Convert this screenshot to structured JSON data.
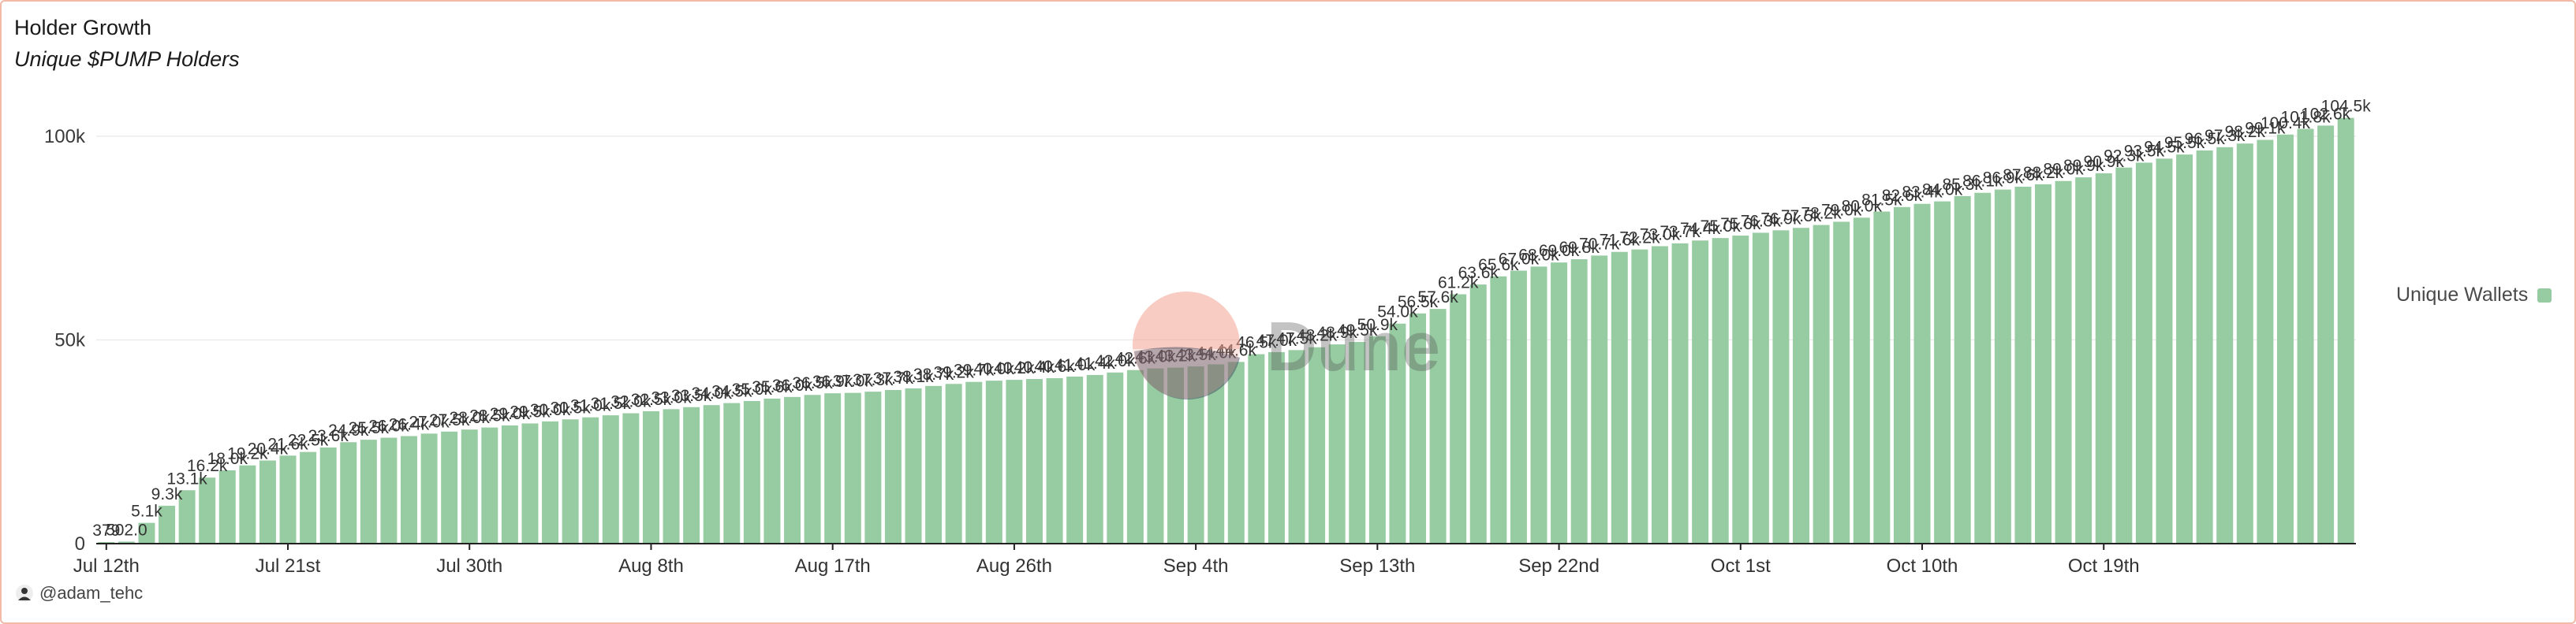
{
  "header": {
    "title": "Holder Growth",
    "subtitle": "Unique $PUMP Holders"
  },
  "footer": {
    "author": "@adam_tehc",
    "author_icon": "user-avatar-icon"
  },
  "watermark": {
    "text": "Dune",
    "icon": "dune-logo-icon"
  },
  "legend": {
    "label": "Unique Wallets",
    "placement": "right",
    "color": "#97cba2"
  },
  "chart_data": {
    "type": "bar",
    "color": "#97cba2",
    "ylim": [
      0,
      105000
    ],
    "yticks": [
      {
        "value": 0,
        "label": "0"
      },
      {
        "value": 50000,
        "label": "50k"
      },
      {
        "value": 100000,
        "label": "100k"
      }
    ],
    "xticks": [
      {
        "index": 0,
        "label": "Jul 12th"
      },
      {
        "index": 9,
        "label": "Jul 21st"
      },
      {
        "index": 18,
        "label": "Jul 30th"
      },
      {
        "index": 27,
        "label": "Aug 8th"
      },
      {
        "index": 36,
        "label": "Aug 17th"
      },
      {
        "index": 45,
        "label": "Aug 26th"
      },
      {
        "index": 54,
        "label": "Sep 4th"
      },
      {
        "index": 63,
        "label": "Sep 13th"
      },
      {
        "index": 72,
        "label": "Sep 22nd"
      },
      {
        "index": 81,
        "label": "Oct 1st"
      },
      {
        "index": 90,
        "label": "Oct 10th"
      },
      {
        "index": 99,
        "label": "Oct 19th"
      }
    ],
    "grid": true,
    "series": [
      {
        "name": "Unique Wallets",
        "values": [
          379,
          502,
          5100,
          9300,
          13100,
          16200,
          18000,
          19200,
          20400,
          21600,
          22500,
          23600,
          24900,
          25500,
          26000,
          26400,
          27000,
          27500,
          28000,
          28500,
          29000,
          29500,
          30000,
          30500,
          31000,
          31500,
          32000,
          32500,
          33000,
          33500,
          34000,
          34500,
          35000,
          35600,
          36000,
          36500,
          36900,
          37000,
          37300,
          37700,
          38100,
          38700,
          39200,
          39700,
          40000,
          40200,
          40400,
          40600,
          41000,
          41400,
          42000,
          42600,
          43000,
          43200,
          43500,
          44000,
          44600,
          46500,
          47000,
          47500,
          48200,
          48900,
          49500,
          50900,
          54000,
          56500,
          57600,
          61200,
          63600,
          65600,
          67000,
          68000,
          69000,
          69800,
          70700,
          71600,
          72200,
          73000,
          73700,
          74400,
          75000,
          75600,
          76300,
          76900,
          77500,
          78200,
          79000,
          80000,
          81500,
          82600,
          83400,
          84000,
          85300,
          86100,
          86900,
          87600,
          88200,
          89000,
          89900,
          90900,
          92300,
          93500,
          94500,
          95500,
          96500,
          97300,
          98200,
          99100,
          100400,
          101800,
          102600,
          104500
        ],
        "labels": [
          "379",
          "502.0",
          "5.1k",
          "9.3k",
          "13.1k",
          "16.2k",
          "18.0k",
          "19.2k",
          "20.4k",
          "21.6k",
          "22.5k",
          "23.6k",
          "24.9k",
          "25.5k",
          "26.0k",
          "26.4k",
          "27.0k",
          "27.5k",
          "28.0k",
          "28.5k",
          "29.0k",
          "29.5k",
          "30.0k",
          "30.5k",
          "31.0k",
          "31.5k",
          "32.0k",
          "32.5k",
          "33.0k",
          "33.5k",
          "34.0k",
          "34.5k",
          "35.0k",
          "35.6k",
          "36.0k",
          "36.5k",
          "36.9k",
          "37.0k",
          "37.3k",
          "37.7k",
          "38.1k",
          "38.7k",
          "39.2k",
          "39.7k",
          "40.0k",
          "40.2k",
          "40.4k",
          "40.6k",
          "41.0k",
          "41.4k",
          "42.0k",
          "42.6k",
          "43.0k",
          "43.2k",
          "43.5k",
          "44.0k",
          "44.6k",
          "46.5k",
          "47.0k",
          "47.5k",
          "48.2k",
          "48.9k",
          "49.5k",
          "50.9k",
          "54.0k",
          "56.5k",
          "57.6k",
          "61.2k",
          "63.6k",
          "65.6k",
          "67.0k",
          "68.0k",
          "69.0k",
          "69.8k",
          "70.7k",
          "71.6k",
          "72.2k",
          "73.0k",
          "73.7k",
          "74.4k",
          "75.0k",
          "75.6k",
          "76.3k",
          "76.9k",
          "77.5k",
          "78.2k",
          "79.0k",
          "80.0k",
          "81.5k",
          "82.6k",
          "83.4k",
          "84.0k",
          "85.3k",
          "86.1k",
          "86.9k",
          "87.6k",
          "88.2k",
          "89.0k",
          "89.9k",
          "90.9k",
          "92.3k",
          "93.5k",
          "94.5k",
          "95.5k",
          "96.5k",
          "97.3k",
          "98.2k",
          "99.1k",
          "100.4k",
          "101.8k",
          "102.6k",
          "104.5k"
        ]
      }
    ]
  }
}
